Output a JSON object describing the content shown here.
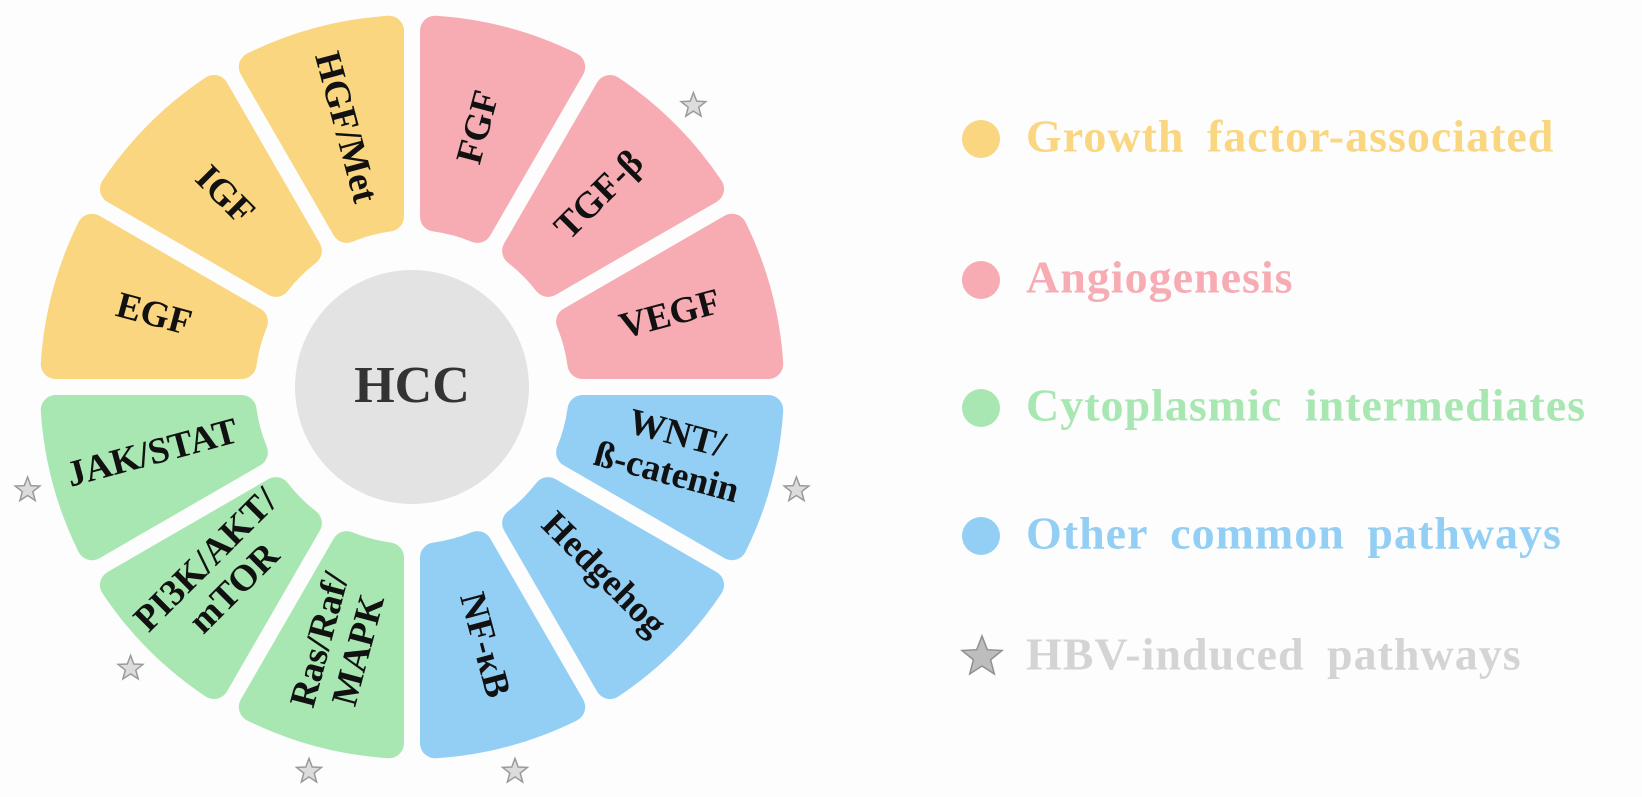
{
  "center": "HCC",
  "groups": [
    {
      "label": "Growth factor-associated",
      "color": "#f9d67f",
      "segments": [
        {
          "label": [
            "EGF"
          ],
          "hbv": false
        },
        {
          "label": [
            "IGF"
          ],
          "hbv": false
        },
        {
          "label": [
            "HGF/Met"
          ],
          "hbv": false
        }
      ]
    },
    {
      "label": "Angiogenesis",
      "color": "#f6acb2",
      "segments": [
        {
          "label": [
            "FGF"
          ],
          "hbv": false
        },
        {
          "label": [
            "TGF-β"
          ],
          "hbv": true
        },
        {
          "label": [
            "VEGF"
          ],
          "hbv": false
        }
      ]
    },
    {
      "label": "Cytoplasmic intermediates",
      "color": "#a8e7b2",
      "segments": [
        {
          "label": [
            "Ras/Raf/",
            "MAPK"
          ],
          "hbv": true
        },
        {
          "label": [
            "PI3K/AKT/",
            "mTOR"
          ],
          "hbv": true
        },
        {
          "label": [
            "JAK/STAT"
          ],
          "hbv": true
        }
      ]
    },
    {
      "label": "Other common pathways",
      "color": "#93cff4",
      "segments": [
        {
          "label": [
            "WNT/",
            "ß-catenin"
          ],
          "hbv": true
        },
        {
          "label": [
            "Hedgehog"
          ],
          "hbv": false
        },
        {
          "label": [
            "NF-κB"
          ],
          "hbv": true
        }
      ]
    }
  ],
  "hbv_legend": "HBV-induced pathways"
}
